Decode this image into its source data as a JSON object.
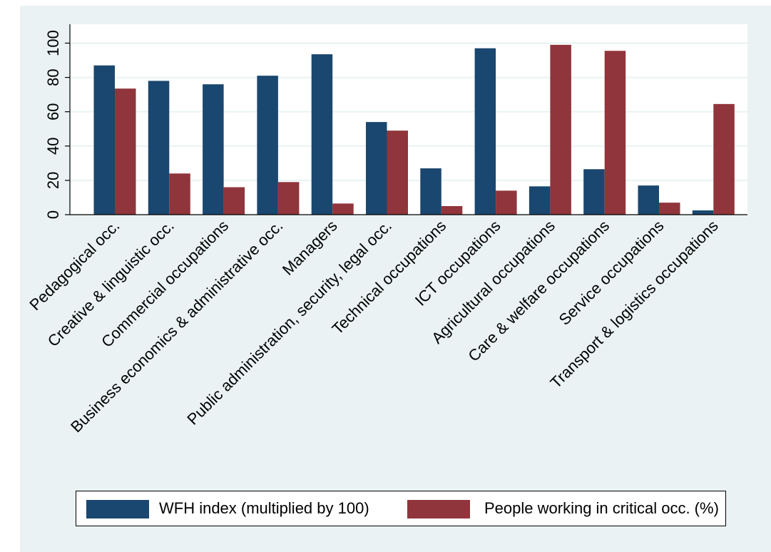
{
  "chart_data": {
    "type": "bar",
    "categories": [
      "Pedagogical occ.",
      "Creative & linguistic occ.",
      "Commercial occupations",
      "Business economics & administrative occ.",
      "Managers",
      "Public administration, security, legal occ.",
      "Technical occupations",
      "ICT occupations",
      "Agricultural occupations",
      "Care & welfare occupations",
      "Service occupations",
      "Transport & logistics occupations"
    ],
    "series": [
      {
        "name": "WFH index (multiplied by 100)",
        "color": "#1a476f",
        "values": [
          87,
          78,
          76,
          81,
          93.5,
          54,
          27,
          97,
          16.5,
          26.5,
          17,
          2.5
        ]
      },
      {
        "name": "People working in critical occ. (%)",
        "color": "#90353b",
        "values": [
          73.5,
          24,
          16,
          19,
          6.5,
          49,
          5,
          14,
          99,
          95.5,
          7,
          64.5
        ]
      }
    ],
    "yticks": [
      0,
      20,
      40,
      60,
      80,
      100
    ],
    "ylim": [
      0,
      111
    ],
    "grid": true,
    "legend_position": "bottom",
    "title": "",
    "xlabel": "",
    "ylabel": ""
  }
}
